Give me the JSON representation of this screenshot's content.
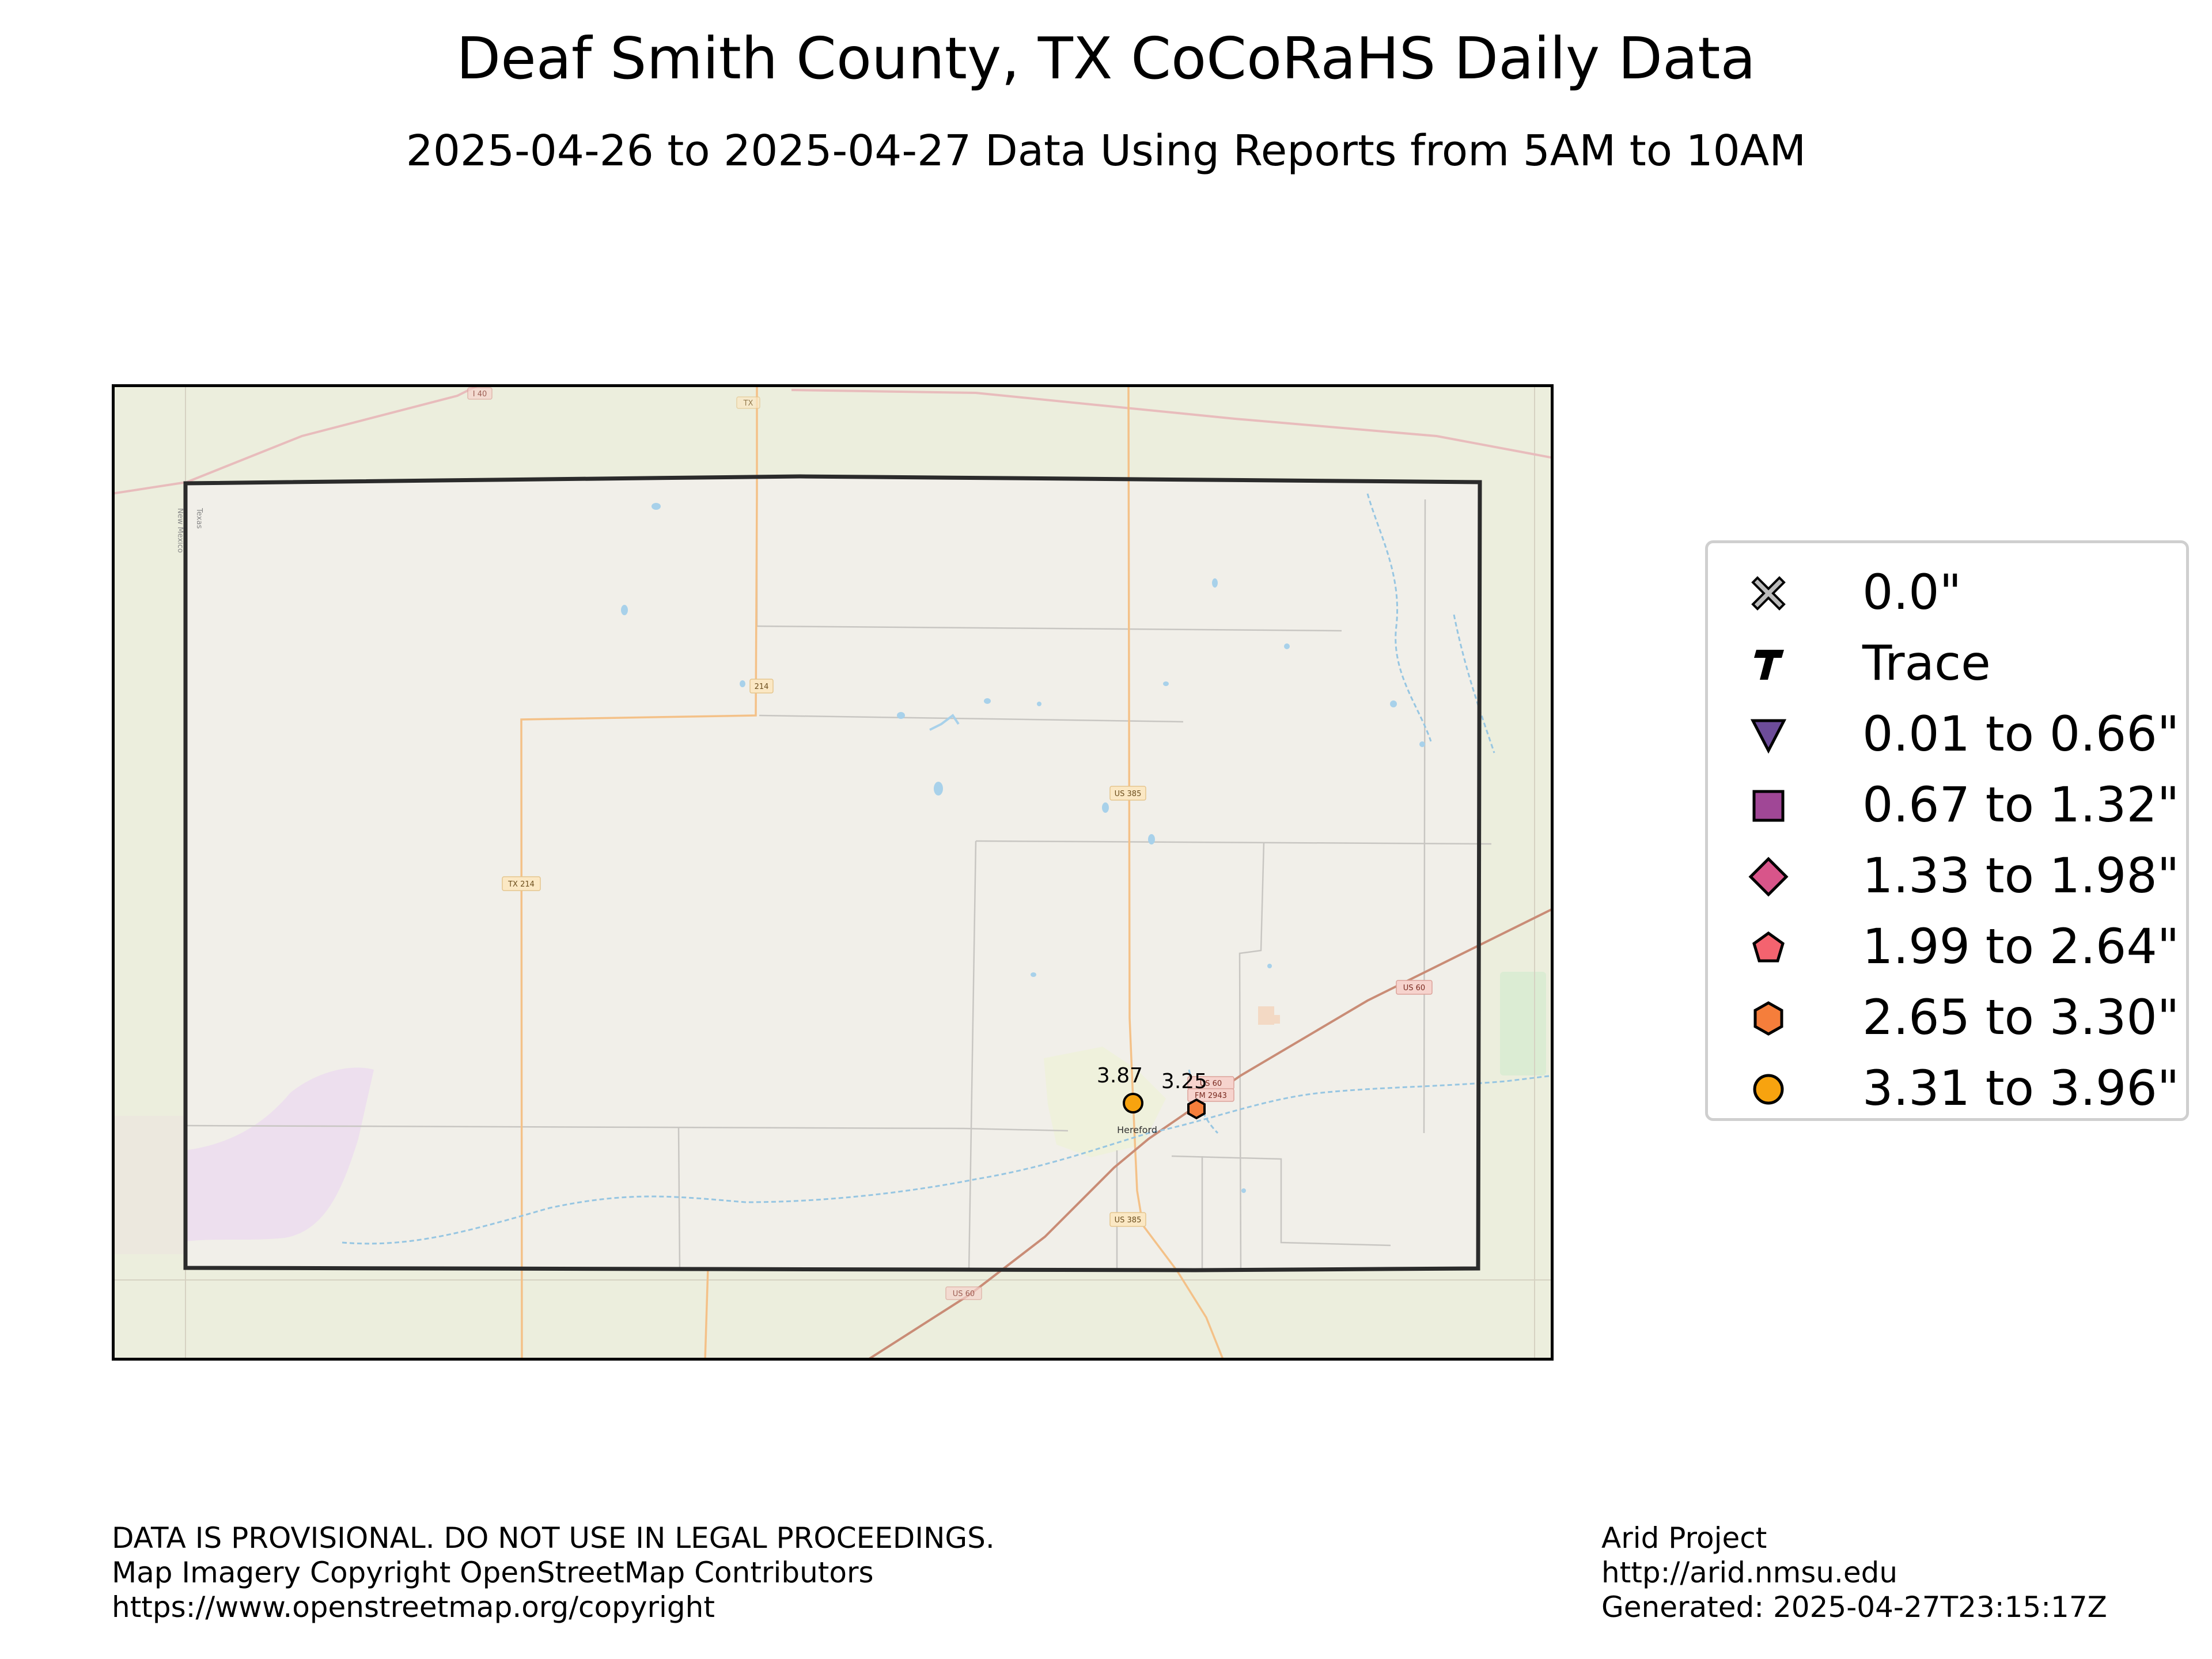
{
  "title": "Deaf Smith County, TX CoCoRaHS Daily Data",
  "subtitle": "2025-04-26 to 2025-04-27 Data Using Reports from 5AM to 10AM",
  "map": {
    "background_color": "#edeede",
    "county_fill": "#f1efe9",
    "road_labels": [
      "US 385",
      "US 385",
      "TX 214",
      "214",
      "US 60",
      "US 60",
      "US 60",
      "FM 2943",
      "I 40",
      "TX"
    ],
    "place_labels": [
      "Hereford",
      "Texas",
      "New Mexico"
    ]
  },
  "observations": [
    {
      "value": "3.87",
      "category": "3.31 to 3.96\"",
      "color": "#f7a30f",
      "shape": "circle"
    },
    {
      "value": "3.25",
      "category": "2.65 to 3.30\"",
      "color": "#f57e3b",
      "shape": "hexagon"
    }
  ],
  "legend": {
    "items": [
      {
        "label": "0.0\"",
        "icon": "x-icon",
        "color": "#bbbbbb"
      },
      {
        "label": "Trace",
        "icon": "t-icon",
        "color": "#000000"
      },
      {
        "label": "0.01 to 0.66\"",
        "icon": "triangle-down-icon",
        "color": "#6d4c99"
      },
      {
        "label": "0.67 to 1.32\"",
        "icon": "square-icon",
        "color": "#a04796"
      },
      {
        "label": "1.33 to 1.98\"",
        "icon": "diamond-icon",
        "color": "#d8558a"
      },
      {
        "label": "1.99 to 2.64\"",
        "icon": "pentagon-icon",
        "color": "#f4636f"
      },
      {
        "label": "2.65 to 3.30\"",
        "icon": "hexagon-icon",
        "color": "#f57e3b"
      },
      {
        "label": "3.31 to 3.96\"",
        "icon": "circle-icon",
        "color": "#f7a30f"
      }
    ]
  },
  "footer": {
    "left": [
      "DATA IS PROVISIONAL. DO NOT USE IN LEGAL PROCEEDINGS.",
      "Map Imagery Copyright OpenStreetMap Contributors",
      "https://www.openstreetmap.org/copyright"
    ],
    "right": [
      "Arid Project",
      "http://arid.nmsu.edu",
      "Generated: 2025-04-27T23:15:17Z"
    ]
  }
}
